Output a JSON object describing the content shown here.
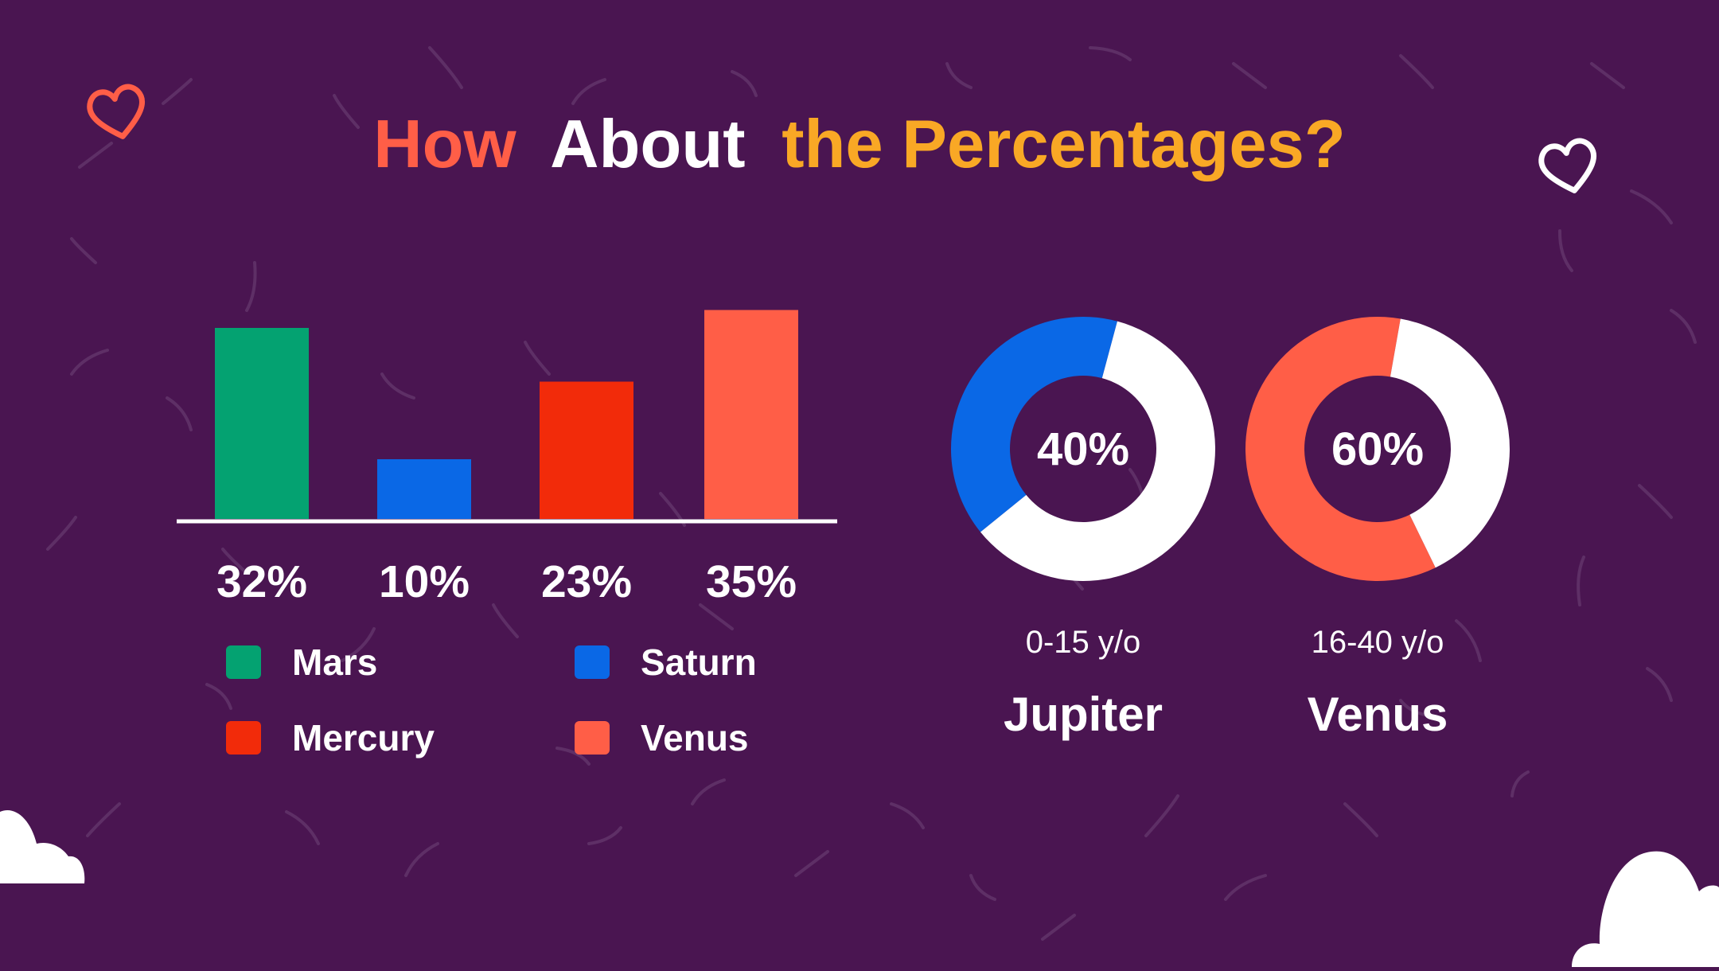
{
  "title": {
    "part1": "How",
    "part2": "About",
    "part3": "the Percentages?",
    "colors": {
      "part1": "#ff5e47",
      "part2": "#ffffff",
      "part3": "#f9a825"
    }
  },
  "decorations": {
    "heart_left_color": "#ff5e47",
    "heart_right_color": "#ffffff",
    "cloud_color": "#ffffff",
    "background_color": "#4a1551",
    "squiggle_color": "#5e2f66",
    "icons": [
      "heart-outline-icon",
      "heart-outline-icon",
      "cloud-icon",
      "cloud-icon"
    ]
  },
  "chart_data": [
    {
      "type": "bar",
      "categories": [
        "Mars",
        "Saturn",
        "Mercury",
        "Venus"
      ],
      "values": [
        32,
        10,
        23,
        35
      ],
      "value_labels": [
        "32%",
        "10%",
        "23%",
        "35%"
      ],
      "colors": [
        "#04a271",
        "#0a68e6",
        "#f22b0a",
        "#ff5e47"
      ],
      "ylim": [
        0,
        40
      ],
      "title": "",
      "xlabel": "",
      "ylabel": "",
      "grid": false,
      "legend": {
        "placement": "bottom",
        "items": [
          {
            "label": "Mars",
            "color": "#04a271"
          },
          {
            "label": "Saturn",
            "color": "#0a68e6"
          },
          {
            "label": "Mercury",
            "color": "#f22b0a"
          },
          {
            "label": "Venus",
            "color": "#ff5e47"
          }
        ]
      }
    },
    {
      "type": "pie",
      "variant": "donut",
      "center_label": "40%",
      "subtitle": "0-15 y/o",
      "name": "Jupiter",
      "slices": [
        {
          "value": 40,
          "color": "#0a68e6"
        },
        {
          "value": 60,
          "color": "#ffffff"
        }
      ]
    },
    {
      "type": "pie",
      "variant": "donut",
      "center_label": "60%",
      "subtitle": "16-40 y/o",
      "name": "Venus",
      "slices": [
        {
          "value": 60,
          "color": "#ff5e47"
        },
        {
          "value": 40,
          "color": "#ffffff"
        }
      ]
    }
  ]
}
